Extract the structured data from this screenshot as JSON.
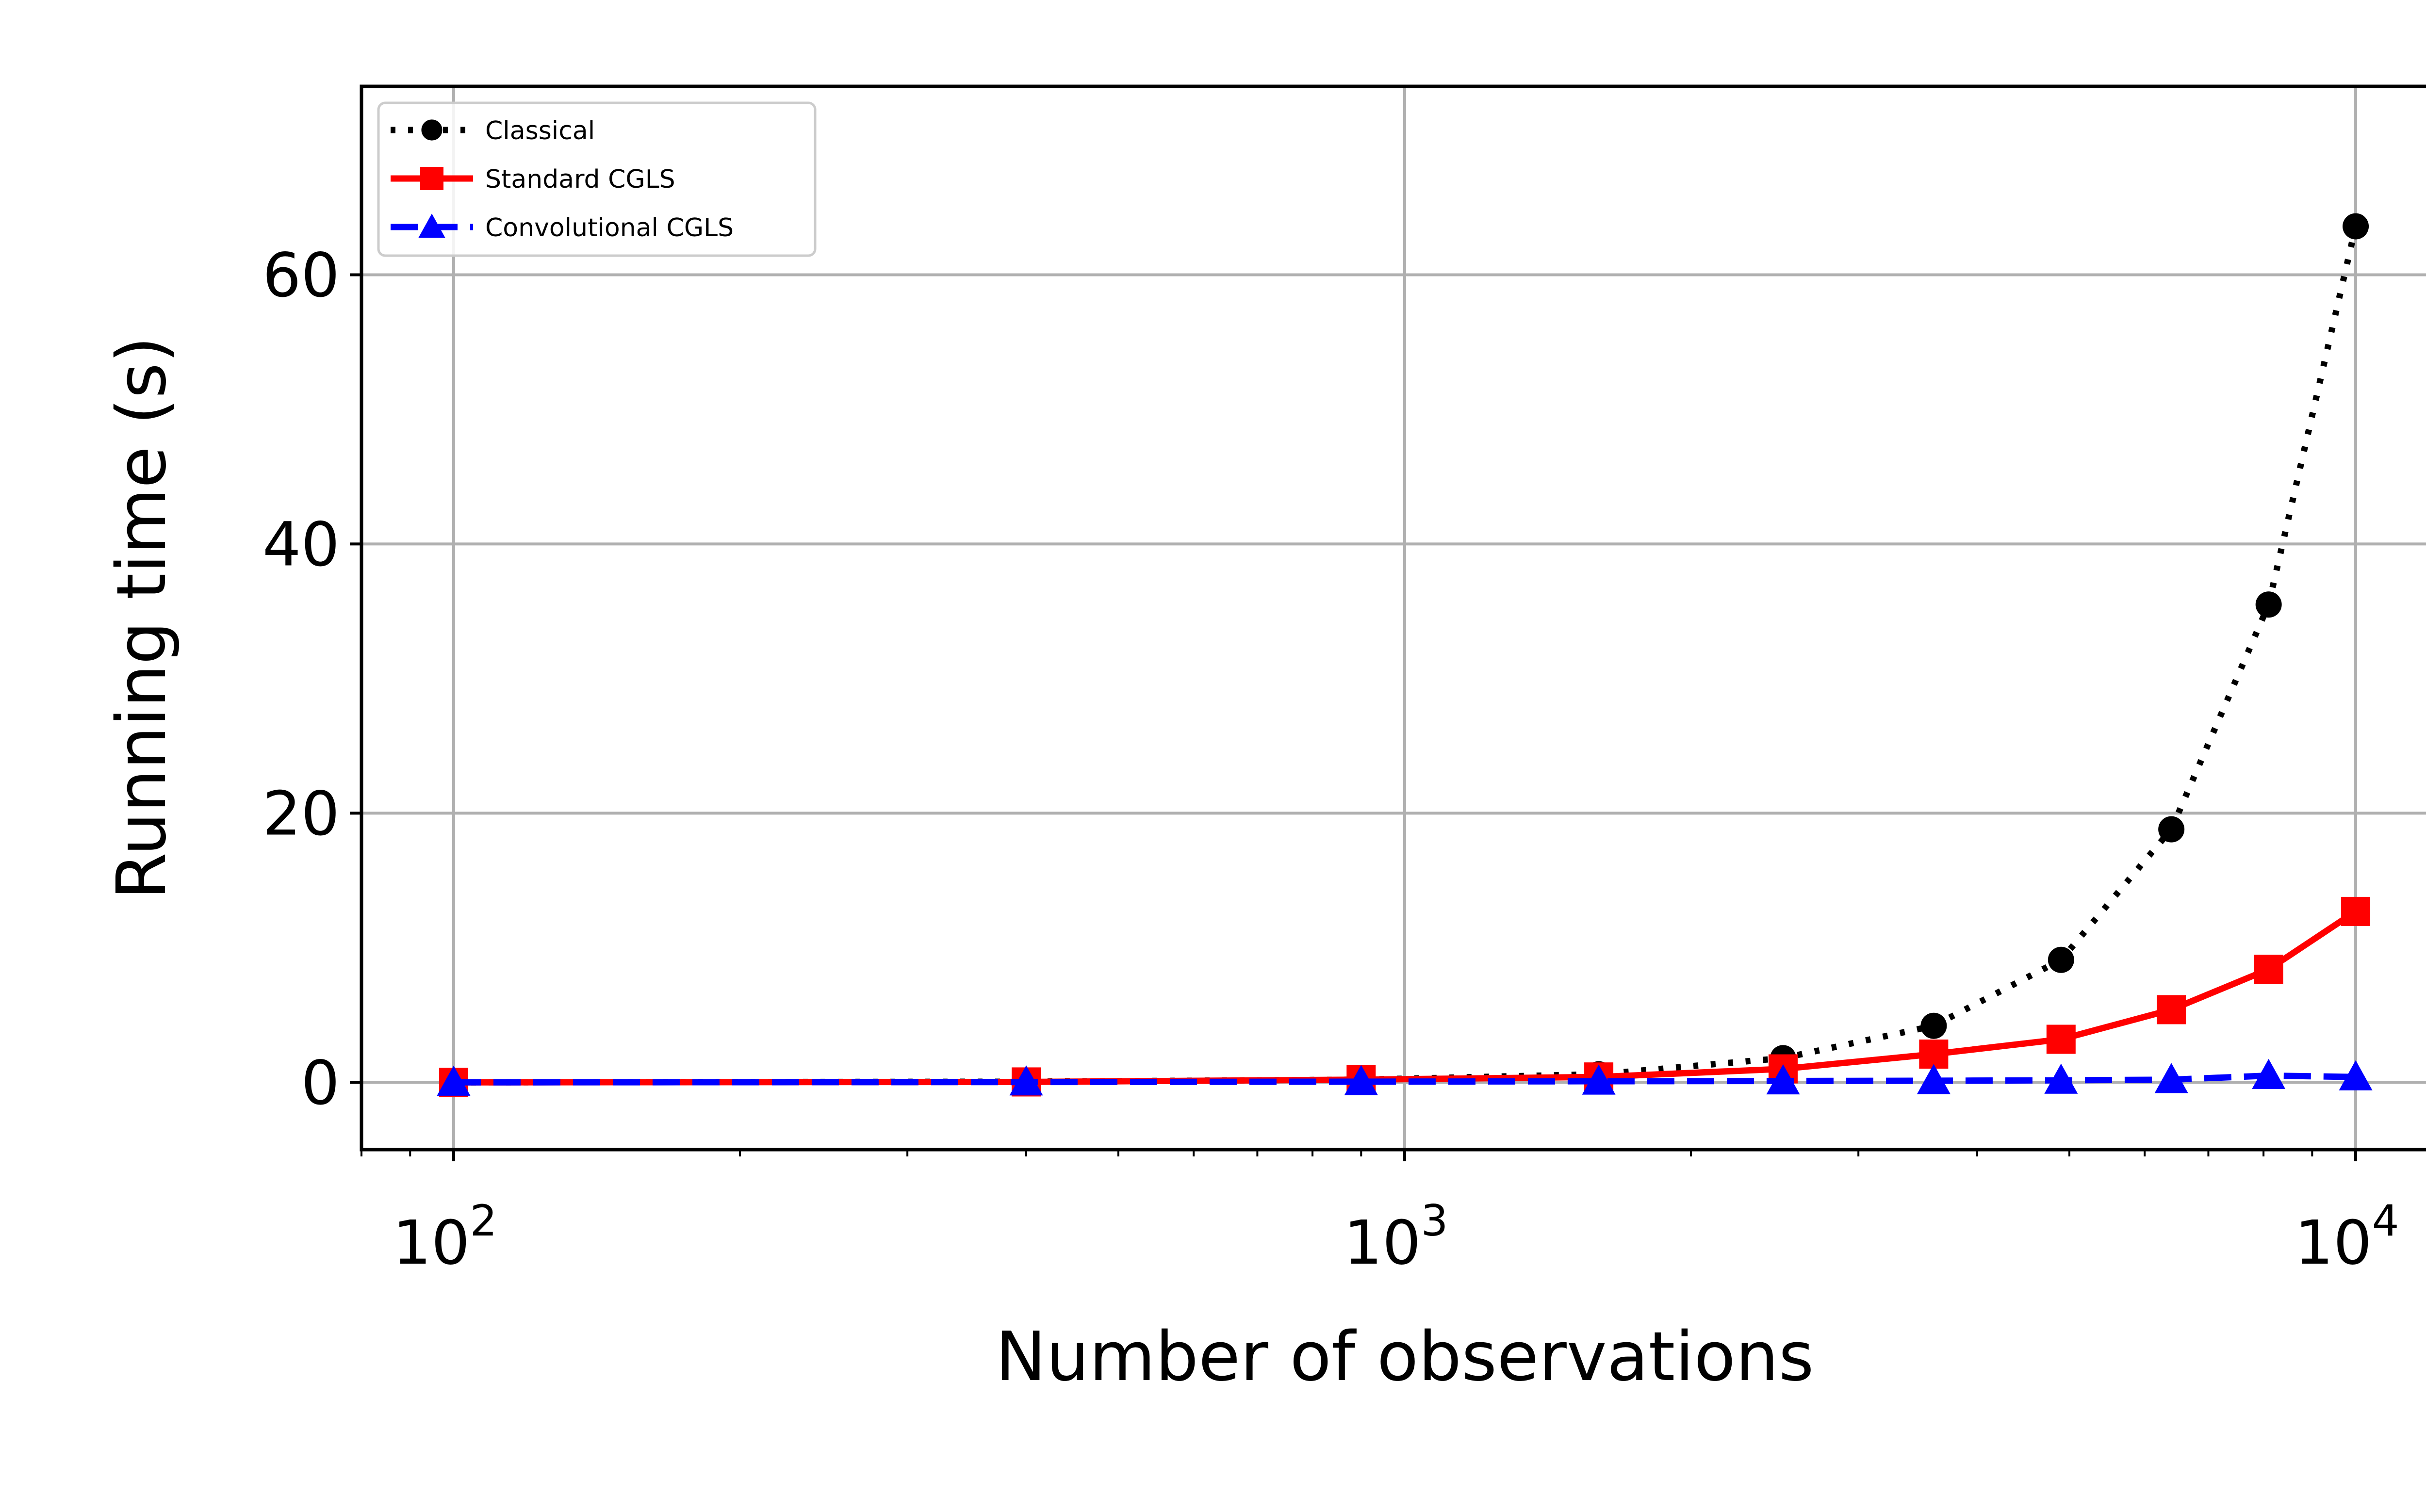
{
  "chart_data": {
    "type": "line",
    "xlabel": "Number of observations",
    "ylabel": "Running time (s)",
    "xscale": "log",
    "xlim": [
      80,
      12500
    ],
    "ylim": [
      -5,
      74
    ],
    "grid": true,
    "legend_position": "top-left",
    "x_ticks": [
      {
        "value": 100,
        "base": "10",
        "exp": "2"
      },
      {
        "value": 1000,
        "base": "10",
        "exp": "3"
      },
      {
        "value": 10000,
        "base": "10",
        "exp": "4"
      }
    ],
    "y_ticks": [
      0,
      20,
      40,
      60
    ],
    "x": [
      100,
      400,
      900,
      1600,
      2500,
      3600,
      4900,
      6400,
      8100,
      10000
    ],
    "series": [
      {
        "name": "Classical",
        "color": "#000000",
        "style": "dotted",
        "marker": "circle",
        "values": [
          0.0,
          0.05,
          0.2,
          0.6,
          1.8,
          4.2,
          9.1,
          18.8,
          35.5,
          63.6
        ]
      },
      {
        "name": "Standard CGLS",
        "color": "#ff0000",
        "style": "solid",
        "marker": "square",
        "values": [
          0.0,
          0.03,
          0.2,
          0.4,
          1.0,
          2.1,
          3.2,
          5.4,
          8.4,
          12.7
        ]
      },
      {
        "name": "Convolutional CGLS",
        "color": "#0000ff",
        "style": "dashed",
        "marker": "triangle",
        "values": [
          0.0,
          0.02,
          0.05,
          0.08,
          0.1,
          0.12,
          0.15,
          0.2,
          0.5,
          0.4
        ]
      }
    ]
  }
}
